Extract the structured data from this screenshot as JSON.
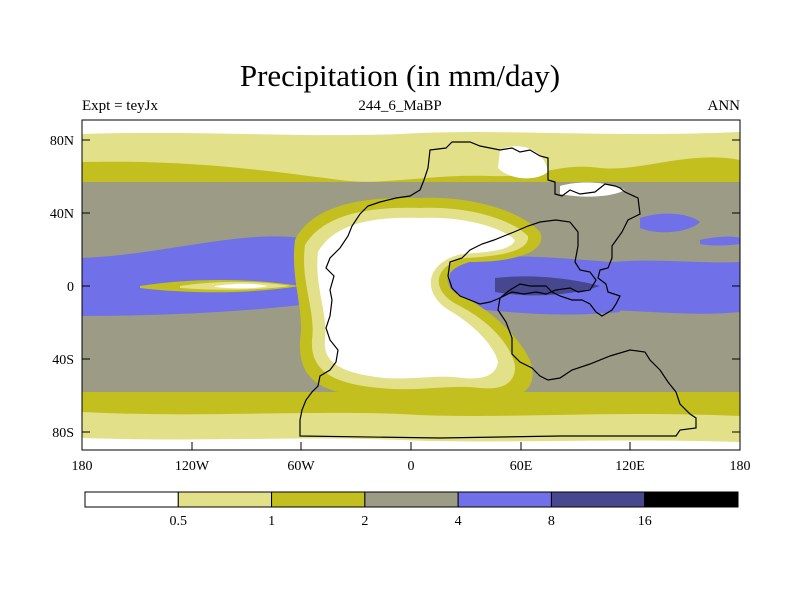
{
  "title": "Precipitation (in mm/day)",
  "left_label": "Expt = teyJx",
  "center_label": "244_6_MaBP",
  "right_label": "ANN",
  "lat_ticks": [
    "80N",
    "40N",
    "0",
    "40S",
    "80S"
  ],
  "lon_ticks": [
    "180",
    "120W",
    "60W",
    "0",
    "60E",
    "120E",
    "180"
  ],
  "colorbar": {
    "colors": [
      "#ffffff",
      "#e3e08a",
      "#c3bf1f",
      "#9b9b86",
      "#7070e8",
      "#47478f",
      "#000000"
    ],
    "labels": [
      "0.5",
      "1",
      "2",
      "4",
      "8",
      "16"
    ]
  }
}
